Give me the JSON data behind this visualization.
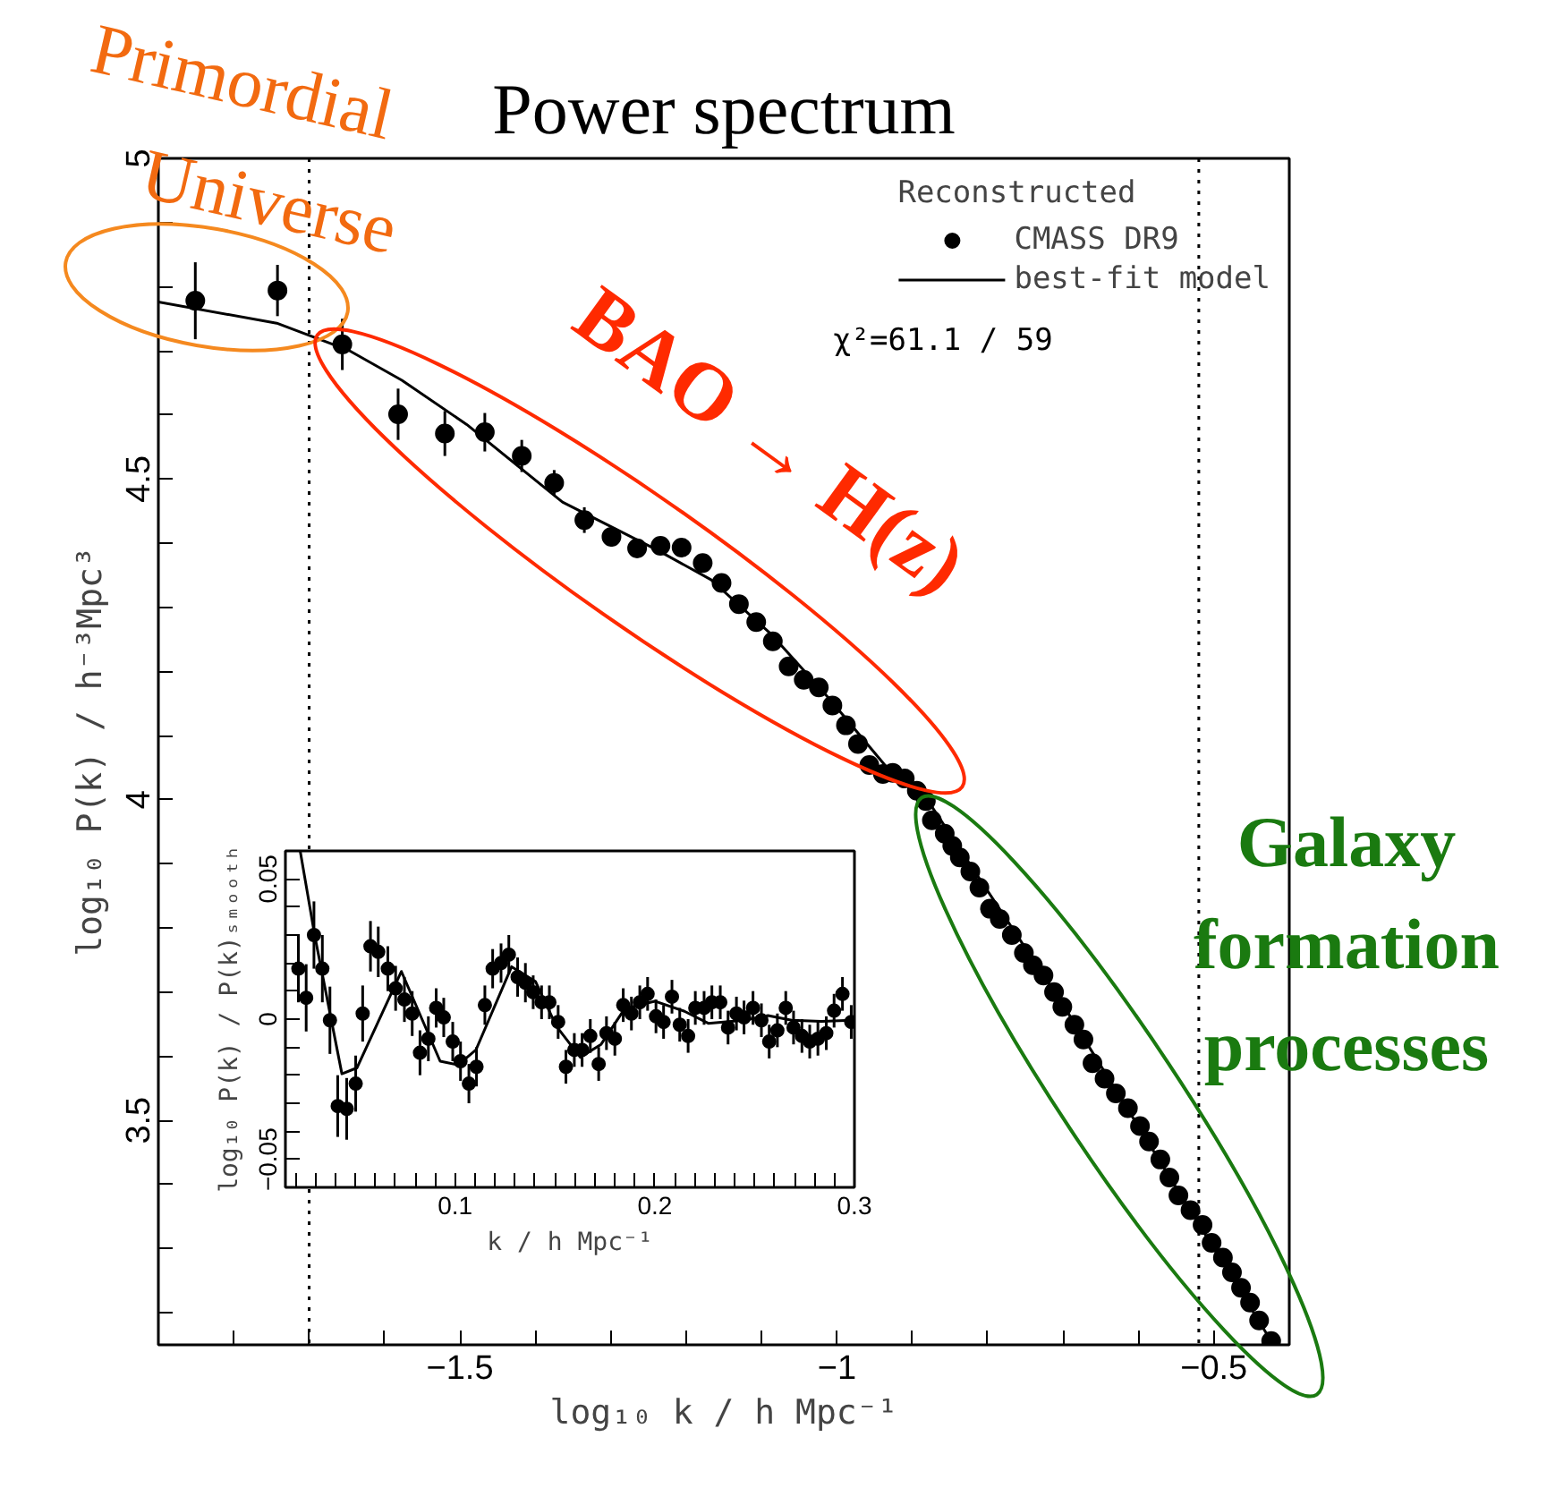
{
  "chart_data": [
    {
      "type": "scatter",
      "title": "Power spectrum",
      "xlabel": "log₁₀ k / h Mpc⁻¹",
      "ylabel": "log₁₀ P(k) / h⁻³Mpc³",
      "xlim": [
        -1.9,
        -0.4
      ],
      "ylim": [
        3.15,
        5
      ],
      "xticks": [
        {
          "value": -1.5,
          "label": "−1.5"
        },
        {
          "value": -1,
          "label": "−1"
        },
        {
          "value": -0.5,
          "label": "−0.5"
        },
        {
          "value": -1.8,
          "label": null
        },
        {
          "value": -1.7,
          "label": null
        },
        {
          "value": -1.6,
          "label": null
        },
        {
          "value": -1.4,
          "label": null
        },
        {
          "value": -1.3,
          "label": null
        },
        {
          "value": -1.2,
          "label": null
        },
        {
          "value": -1.1,
          "label": null
        },
        {
          "value": -0.9,
          "label": null
        },
        {
          "value": -0.8,
          "label": null
        },
        {
          "value": -0.7,
          "label": null
        },
        {
          "value": -0.6,
          "label": null
        }
      ],
      "yticks": [
        3.5,
        4,
        4.5,
        5,
        {
          "value": 3.2,
          "label": null
        },
        {
          "value": 3.3,
          "label": null
        },
        {
          "value": 3.4,
          "label": null
        },
        {
          "value": 3.6,
          "label": null
        },
        {
          "value": 3.7,
          "label": null
        },
        {
          "value": 3.8,
          "label": null
        },
        {
          "value": 3.9,
          "label": null
        },
        {
          "value": 4.1,
          "label": null
        },
        {
          "value": 4.2,
          "label": null
        },
        {
          "value": 4.3,
          "label": null
        },
        {
          "value": 4.4,
          "label": null
        },
        {
          "value": 4.6,
          "label": null
        },
        {
          "value": 4.7,
          "label": null
        },
        {
          "value": 4.8,
          "label": null
        },
        {
          "value": 4.9,
          "label": null
        }
      ],
      "grid": false,
      "legend": "top right",
      "legend_title": "Reconstructed",
      "ref_lines": [
        {
          "axis": "x",
          "value": -1.7,
          "line_style": "dotted",
          "color": "#000000"
        },
        {
          "axis": "x",
          "value": -0.52,
          "line_style": "dotted",
          "color": "#000000"
        }
      ],
      "annotations": [
        "Primordial Universe",
        "BAO → H(z)",
        "Galaxy formation processes",
        "χ²=61.1 / 59"
      ],
      "series": [
        {
          "name": "CMASS DR9",
          "marker": "circle",
          "color": "#000000",
          "x": [
            -1.851,
            -1.742,
            -1.656,
            -1.582,
            -1.52,
            -1.467,
            -1.418,
            -1.375,
            -1.335,
            -1.299,
            -1.265,
            -1.234,
            -1.206,
            -1.178,
            -1.153,
            -1.13,
            -1.107,
            -1.085,
            -1.064,
            -1.044,
            -1.024,
            -1.006,
            -0.988,
            -0.972,
            -0.957,
            -0.939,
            -0.926,
            -0.91,
            -0.894,
            -0.882,
            -0.874,
            -0.857,
            -0.847,
            -0.837,
            -0.823,
            -0.811,
            -0.797,
            -0.784,
            -0.768,
            -0.752,
            -0.74,
            -0.726,
            -0.712,
            -0.701,
            -0.685,
            -0.673,
            -0.661,
            -0.645,
            -0.63,
            -0.614,
            -0.598,
            -0.586,
            -0.571,
            -0.559,
            -0.547,
            -0.531,
            -0.515,
            -0.503,
            -0.488,
            -0.476,
            -0.464,
            -0.452,
            -0.44,
            -0.424
          ],
          "values": [
            4.778,
            4.794,
            4.71,
            4.601,
            4.571,
            4.573,
            4.536,
            4.494,
            4.436,
            4.41,
            4.392,
            4.396,
            4.393,
            4.369,
            4.338,
            4.305,
            4.277,
            4.247,
            4.208,
            4.187,
            4.175,
            4.147,
            4.116,
            4.087,
            4.054,
            4.04,
            4.042,
            4.033,
            4.014,
            3.998,
            3.968,
            3.947,
            3.928,
            3.91,
            3.888,
            3.863,
            3.83,
            3.814,
            3.789,
            3.761,
            3.742,
            3.726,
            3.7,
            3.677,
            3.649,
            3.626,
            3.589,
            3.565,
            3.542,
            3.519,
            3.491,
            3.467,
            3.439,
            3.411,
            3.383,
            3.36,
            3.337,
            3.309,
            3.286,
            3.263,
            3.239,
            3.216,
            3.188,
            3.156
          ],
          "errors": [
            0.06,
            0.04,
            0.04,
            0.04,
            0.035,
            0.03,
            0.025,
            0.02,
            0.02,
            0.015,
            0.015,
            null,
            null,
            null,
            null,
            null,
            null,
            null,
            null,
            null,
            null,
            null,
            null,
            null,
            null,
            null,
            null,
            null,
            null,
            null,
            null,
            null,
            null,
            null,
            null,
            null,
            null,
            null,
            null,
            null,
            null,
            null,
            null,
            null,
            null,
            null,
            null,
            null,
            null,
            null,
            null,
            null,
            null,
            null,
            null,
            null,
            null,
            null,
            null,
            null,
            null,
            null,
            null,
            null
          ]
        },
        {
          "name": "best-fit model",
          "type": "line",
          "marker": "none",
          "color": "#000000",
          "x": [
            -1.9,
            -1.743,
            -1.648,
            -1.577,
            -1.491,
            -1.364,
            -1.238,
            -1.167,
            -1.088,
            -1.009,
            -0.93,
            -0.874,
            -0.7,
            -0.424
          ],
          "values": [
            4.776,
            4.743,
            4.701,
            4.654,
            4.585,
            4.464,
            4.389,
            4.343,
            4.259,
            4.156,
            4.045,
            3.989,
            3.68,
            3.156
          ]
        }
      ]
    },
    {
      "type": "scatter",
      "xlabel": "k / h Mpc⁻¹",
      "ylabel": "log₁₀ P(k) / P(k)ₛₘₒₒₜₕ",
      "xlim": [
        0.015,
        0.3
      ],
      "ylim": [
        -0.06,
        0.06
      ],
      "xticks": [
        0.1,
        0.2,
        0.3,
        {
          "value": 0.02,
          "label": null
        },
        {
          "value": 0.03,
          "label": null
        },
        {
          "value": 0.04,
          "label": null
        },
        {
          "value": 0.05,
          "label": null
        },
        {
          "value": 0.06,
          "label": null
        },
        {
          "value": 0.07,
          "label": null
        },
        {
          "value": 0.08,
          "label": null
        },
        {
          "value": 0.09,
          "label": null
        },
        {
          "value": 0.11,
          "label": null
        },
        {
          "value": 0.12,
          "label": null
        },
        {
          "value": 0.13,
          "label": null
        },
        {
          "value": 0.14,
          "label": null
        },
        {
          "value": 0.15,
          "label": null
        },
        {
          "value": 0.16,
          "label": null
        },
        {
          "value": 0.17,
          "label": null
        },
        {
          "value": 0.18,
          "label": null
        },
        {
          "value": 0.19,
          "label": null
        },
        {
          "value": 0.21,
          "label": null
        },
        {
          "value": 0.22,
          "label": null
        },
        {
          "value": 0.23,
          "label": null
        },
        {
          "value": 0.24,
          "label": null
        },
        {
          "value": 0.25,
          "label": null
        },
        {
          "value": 0.26,
          "label": null
        },
        {
          "value": 0.27,
          "label": null
        },
        {
          "value": 0.28,
          "label": null
        },
        {
          "value": 0.29,
          "label": null
        }
      ],
      "yticks": [
        {
          "value": -0.05,
          "label": "−0.05"
        },
        0,
        0.05,
        {
          "value": -0.04,
          "label": null
        },
        {
          "value": -0.03,
          "label": null
        },
        {
          "value": -0.02,
          "label": null
        },
        {
          "value": -0.01,
          "label": null
        },
        {
          "value": 0.01,
          "label": null
        },
        {
          "value": 0.02,
          "label": null
        },
        {
          "value": 0.03,
          "label": null
        },
        {
          "value": 0.04,
          "label": null
        }
      ],
      "grid": false,
      "series": [
        {
          "marker": "circle",
          "color": "#000000",
          "x": [
            0.0215,
            0.0254,
            0.0293,
            0.0335,
            0.0373,
            0.0412,
            0.0457,
            0.0502,
            0.0537,
            0.0576,
            0.0615,
            0.0663,
            0.0702,
            0.0746,
            0.0785,
            0.0824,
            0.0866,
            0.0905,
            0.0943,
            0.0988,
            0.1027,
            0.1069,
            0.1107,
            0.1149,
            0.1188,
            0.123,
            0.1269,
            0.1313,
            0.1352,
            0.1391,
            0.1433,
            0.1472,
            0.1516,
            0.1555,
            0.1597,
            0.1636,
            0.1677,
            0.1719,
            0.1758,
            0.18,
            0.1842,
            0.1883,
            0.1925,
            0.1964,
            0.2006,
            0.2044,
            0.2086,
            0.2125,
            0.2167,
            0.2203,
            0.2247,
            0.2286,
            0.2328,
            0.2367,
            0.2409,
            0.2447,
            0.2492,
            0.2534,
            0.2573,
            0.2614,
            0.2656,
            0.2695,
            0.2737,
            0.2776,
            0.2817,
            0.2859,
            0.2898,
            0.294,
            0.2984
          ],
          "values": [
            0.018,
            0.0076,
            0.03,
            0.018,
            -0.0004,
            -0.031,
            -0.032,
            -0.023,
            0.002,
            0.026,
            0.024,
            0.018,
            0.011,
            0.007,
            0.002,
            -0.012,
            -0.007,
            0.004,
            0.0006,
            -0.008,
            -0.015,
            -0.023,
            -0.017,
            0.005,
            0.018,
            0.02,
            0.023,
            0.015,
            0.013,
            0.0096,
            0.006,
            0.006,
            -0.001,
            -0.017,
            -0.011,
            -0.011,
            -0.006,
            -0.016,
            -0.005,
            -0.007,
            0.005,
            0.002,
            0.006,
            0.009,
            0.001,
            -0.001,
            0.008,
            -0.002,
            -0.006,
            0.004,
            0.004,
            0.006,
            0.006,
            -0.003,
            0.002,
            0.0006,
            0.004,
            -0.0004,
            -0.008,
            -0.004,
            0.004,
            -0.003,
            -0.006,
            -0.008,
            -0.007,
            -0.005,
            0.003,
            0.009,
            -0.001
          ],
          "errors": [
            0.012,
            0.012,
            0.012,
            0.012,
            0.012,
            0.011,
            0.011,
            0.01,
            0.01,
            0.009,
            0.009,
            0.008,
            0.008,
            0.008,
            0.008,
            0.008,
            0.008,
            0.007,
            0.007,
            0.007,
            0.007,
            0.007,
            0.007,
            0.007,
            0.007,
            0.007,
            0.007,
            0.007,
            0.007,
            0.006,
            0.006,
            0.006,
            0.006,
            0.006,
            0.006,
            0.006,
            0.006,
            0.006,
            0.006,
            0.006,
            0.006,
            0.006,
            0.006,
            0.006,
            0.006,
            0.006,
            0.006,
            0.006,
            0.006,
            0.006,
            0.006,
            0.006,
            0.006,
            0.006,
            0.006,
            0.006,
            0.006,
            0.006,
            0.006,
            0.006,
            0.006,
            0.006,
            0.006,
            0.006,
            0.006,
            0.006,
            0.006,
            0.006,
            0.006
          ]
        },
        {
          "type": "line",
          "marker": "none",
          "color": "#000000",
          "x": [
            0.0224,
            0.0299,
            0.0433,
            0.0508,
            0.0731,
            0.0925,
            0.1015,
            0.1104,
            0.1283,
            0.1403,
            0.1507,
            0.1627,
            0.1731,
            0.185,
            0.2,
            0.2149,
            0.2268,
            0.2447,
            0.2567,
            0.2686,
            0.2835,
            0.2984
          ],
          "values": [
            0.06,
            0.029,
            -0.0195,
            -0.0174,
            0.017,
            -0.015,
            -0.0163,
            -0.011,
            0.0187,
            0.0134,
            -0.0025,
            -0.0136,
            -0.009,
            0.0038,
            0.0064,
            0.0028,
            -0.0015,
            -0.0004,
            0.0013,
            -0.0004,
            -0.0008,
            -0.0004
          ]
        }
      ]
    }
  ]
}
